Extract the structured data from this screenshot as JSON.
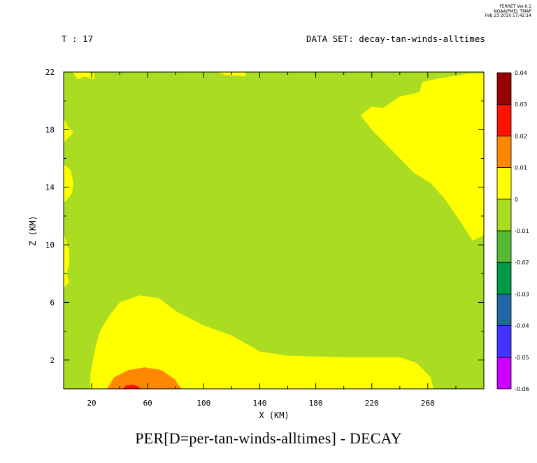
{
  "header": {
    "stamp_lines": [
      "FERRET  Ver.6.1",
      "NOAA/PMEL TMAP",
      "Feb 23 2010 17:42:14"
    ],
    "time_label": "T : 17",
    "dataset_label": "DATA SET: decay-tan-winds-alltimes"
  },
  "chart_data": {
    "type": "contour",
    "title": "PER[D=per-tan-winds-alltimes] - DECAY",
    "xlabel": "X (KM)",
    "ylabel": "Z (KM)",
    "xlim": [
      0,
      300
    ],
    "ylim": [
      0,
      22
    ],
    "x_ticks": [
      20,
      60,
      100,
      140,
      180,
      220,
      260
    ],
    "y_ticks": [
      2,
      6,
      10,
      14,
      18,
      22
    ],
    "colorbar": {
      "levels": [
        -0.06,
        -0.05,
        -0.04,
        -0.03,
        -0.02,
        -0.01,
        0,
        0.01,
        0.02,
        0.03,
        0.04
      ],
      "labels": [
        "-0.06",
        "-0.05",
        "-0.04",
        "-0.03",
        "-0.02",
        "-0.01",
        "0",
        "0.01",
        "0.02",
        "0.03",
        "0.04"
      ],
      "colors": [
        "#cc00ff",
        "#4433ff",
        "#2266aa",
        "#009944",
        "#55bb33",
        "#aadd22",
        "#ffff00",
        "#ff8800",
        "#ff1100",
        "#990000"
      ]
    },
    "regions": [
      {
        "level_range": [
          0,
          0.01
        ],
        "color": "#ffff00",
        "points": [
          [
            19,
            0
          ],
          [
            19,
            1
          ],
          [
            21,
            2
          ],
          [
            23,
            3
          ],
          [
            26,
            4
          ],
          [
            32,
            5
          ],
          [
            40,
            6
          ],
          [
            54,
            6.5
          ],
          [
            68,
            6.3
          ],
          [
            80,
            5.4
          ],
          [
            100,
            4.4
          ],
          [
            120,
            3.7
          ],
          [
            140,
            2.6
          ],
          [
            160,
            2.3
          ],
          [
            200,
            2.2
          ],
          [
            240,
            2.2
          ],
          [
            252,
            1.8
          ],
          [
            262,
            0.8
          ],
          [
            264,
            0
          ]
        ]
      },
      {
        "level_range": [
          0.01,
          0.02
        ],
        "color": "#ff8800",
        "points": [
          [
            31,
            0
          ],
          [
            36,
            0.8
          ],
          [
            46,
            1.3
          ],
          [
            58,
            1.5
          ],
          [
            70,
            1.3
          ],
          [
            79,
            0.7
          ],
          [
            84,
            0
          ]
        ]
      },
      {
        "level_range": [
          0.02,
          0.03
        ],
        "color": "#ff1100",
        "points": [
          [
            42,
            0
          ],
          [
            45,
            0.25
          ],
          [
            50,
            0.3
          ],
          [
            54,
            0.1
          ],
          [
            55,
            0
          ]
        ]
      },
      {
        "level_range": [
          0,
          0.01
        ],
        "color": "#ffff00",
        "points": [
          [
            212,
            19
          ],
          [
            220,
            18
          ],
          [
            230,
            17
          ],
          [
            240,
            16
          ],
          [
            250,
            15
          ],
          [
            262,
            14.3
          ],
          [
            272,
            13.2
          ],
          [
            282,
            11.8
          ],
          [
            292,
            10.3
          ],
          [
            299,
            10.6
          ],
          [
            300,
            10.8
          ],
          [
            300,
            21.9
          ],
          [
            290,
            21.9
          ],
          [
            270,
            21.6
          ],
          [
            256,
            21.3
          ],
          [
            254,
            20.6
          ],
          [
            240,
            20.3
          ],
          [
            228,
            19.5
          ],
          [
            220,
            19.6
          ]
        ]
      },
      {
        "level_range": [
          0,
          0.01
        ],
        "color": "#ffff00",
        "points": [
          [
            16,
            22
          ],
          [
            22,
            21.9
          ],
          [
            22,
            21.5
          ],
          [
            15,
            21.7
          ],
          [
            10,
            21.5
          ],
          [
            8,
            21.8
          ],
          [
            6,
            22
          ]
        ]
      },
      {
        "level_range": [
          0,
          0.01
        ],
        "color": "#ffff00",
        "points": [
          [
            106,
            22
          ],
          [
            130,
            22
          ],
          [
            130,
            21.7
          ],
          [
            115,
            21.8
          ],
          [
            110,
            22
          ]
        ]
      },
      {
        "level_range": [
          0,
          0.01
        ],
        "color": "#ffff00",
        "points": [
          [
            0,
            18.8
          ],
          [
            3,
            18.2
          ],
          [
            7,
            17.8
          ],
          [
            3,
            17.4
          ],
          [
            0,
            17.1
          ]
        ]
      },
      {
        "level_range": [
          0,
          0.01
        ],
        "color": "#ffff00",
        "points": [
          [
            0,
            15.6
          ],
          [
            5,
            15.2
          ],
          [
            7,
            14.3
          ],
          [
            6,
            13.6
          ],
          [
            4,
            13.3
          ],
          [
            0,
            12.9
          ]
        ]
      },
      {
        "level_range": [
          0,
          0.01
        ],
        "color": "#ffff00",
        "points": [
          [
            0,
            10.8
          ],
          [
            4,
            9.6
          ],
          [
            4,
            8.6
          ],
          [
            2,
            8.0
          ],
          [
            4,
            7.4
          ],
          [
            2,
            7.2
          ],
          [
            0,
            7.0
          ]
        ]
      }
    ]
  }
}
